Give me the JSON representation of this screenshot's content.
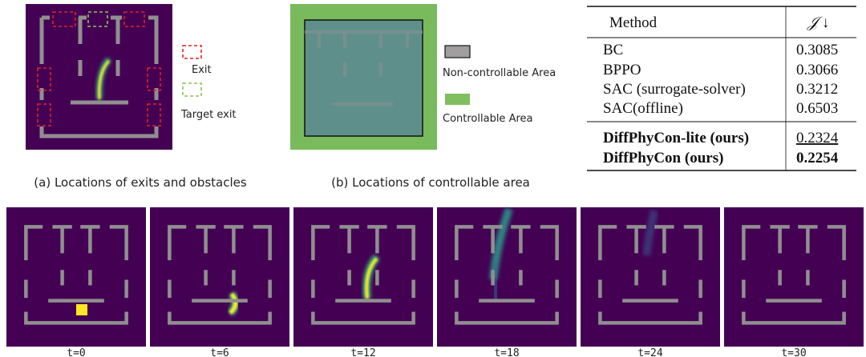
{
  "panel_a": {
    "legend": [
      "Exit",
      "Target exit"
    ],
    "caption": "(a) Locations of exits and obstacles"
  },
  "panel_b": {
    "legend": [
      "Non-controllable Area",
      "Controllable Area"
    ],
    "caption": "(b) Locations of controllable area"
  },
  "table": {
    "header": [
      "Method",
      "𝒥 ↓"
    ],
    "rows": [
      [
        "BC",
        "0.3085"
      ],
      [
        "BPPO",
        "0.3066"
      ],
      [
        "SAC (surrogate-solver)",
        "0.3212"
      ],
      [
        "SAC(offline)",
        "0.6503"
      ],
      [
        "DiffPhyCon-lite (ours)",
        "0.2324"
      ],
      [
        "DiffPhyCon (ours)",
        "0.2254"
      ]
    ]
  },
  "frames": [
    "t=0",
    "t=6",
    "t=12",
    "t=18",
    "t=24",
    "t=30"
  ]
}
